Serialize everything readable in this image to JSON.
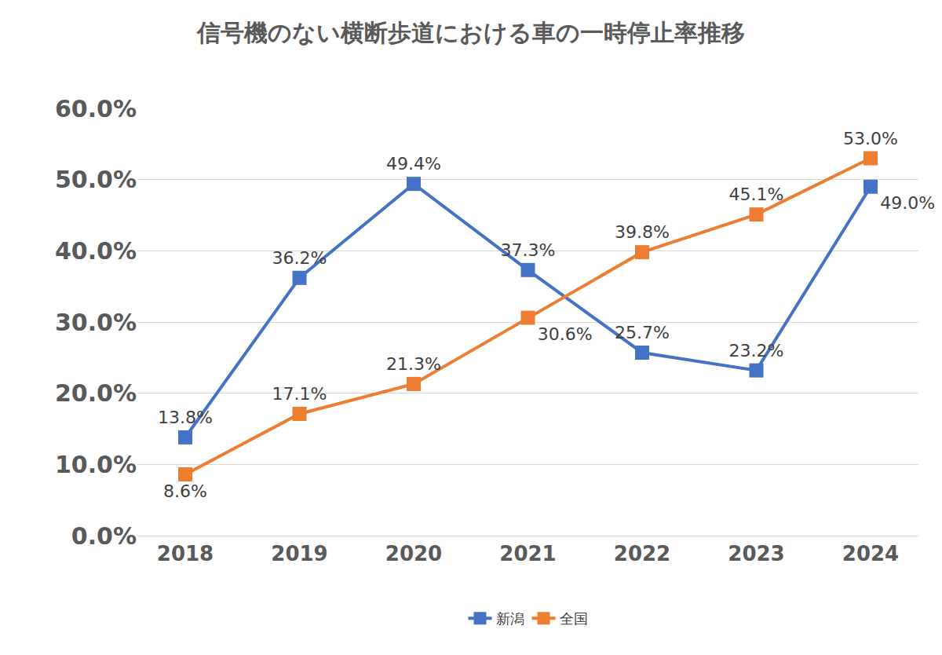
{
  "chart_data": {
    "type": "line",
    "title": "信号機のない横断歩道における車の一時停止率推移",
    "categories": [
      "2018",
      "2019",
      "2020",
      "2021",
      "2022",
      "2023",
      "2024"
    ],
    "series": [
      {
        "name": "新潟",
        "color": "#4472c4",
        "values": [
          13.8,
          36.2,
          49.4,
          37.3,
          25.7,
          23.2,
          49.0
        ],
        "value_labels": [
          "13.8%",
          "36.2%",
          "49.4%",
          "37.3%",
          "25.7%",
          "23.2%",
          "49.0%"
        ]
      },
      {
        "name": "全国",
        "color": "#ed7d31",
        "values": [
          8.6,
          17.1,
          21.3,
          30.6,
          39.8,
          45.1,
          53.0
        ],
        "value_labels": [
          "8.6%",
          "17.1%",
          "21.3%",
          "30.6%",
          "39.8%",
          "45.1%",
          "53.0%"
        ]
      }
    ],
    "ylim": [
      0,
      60
    ],
    "yticks": [
      {
        "value": 0,
        "label": "0.0%"
      },
      {
        "value": 10,
        "label": "10.0%"
      },
      {
        "value": 20,
        "label": "20.0%"
      },
      {
        "value": 30,
        "label": "30.0%"
      },
      {
        "value": 40,
        "label": "40.0%"
      },
      {
        "value": 50,
        "label": "50.0%"
      },
      {
        "value": 60,
        "label": "60.0%"
      }
    ],
    "grid": true,
    "legend": "bottom",
    "data_labels": true,
    "marker": "square",
    "line_style": "solid"
  }
}
